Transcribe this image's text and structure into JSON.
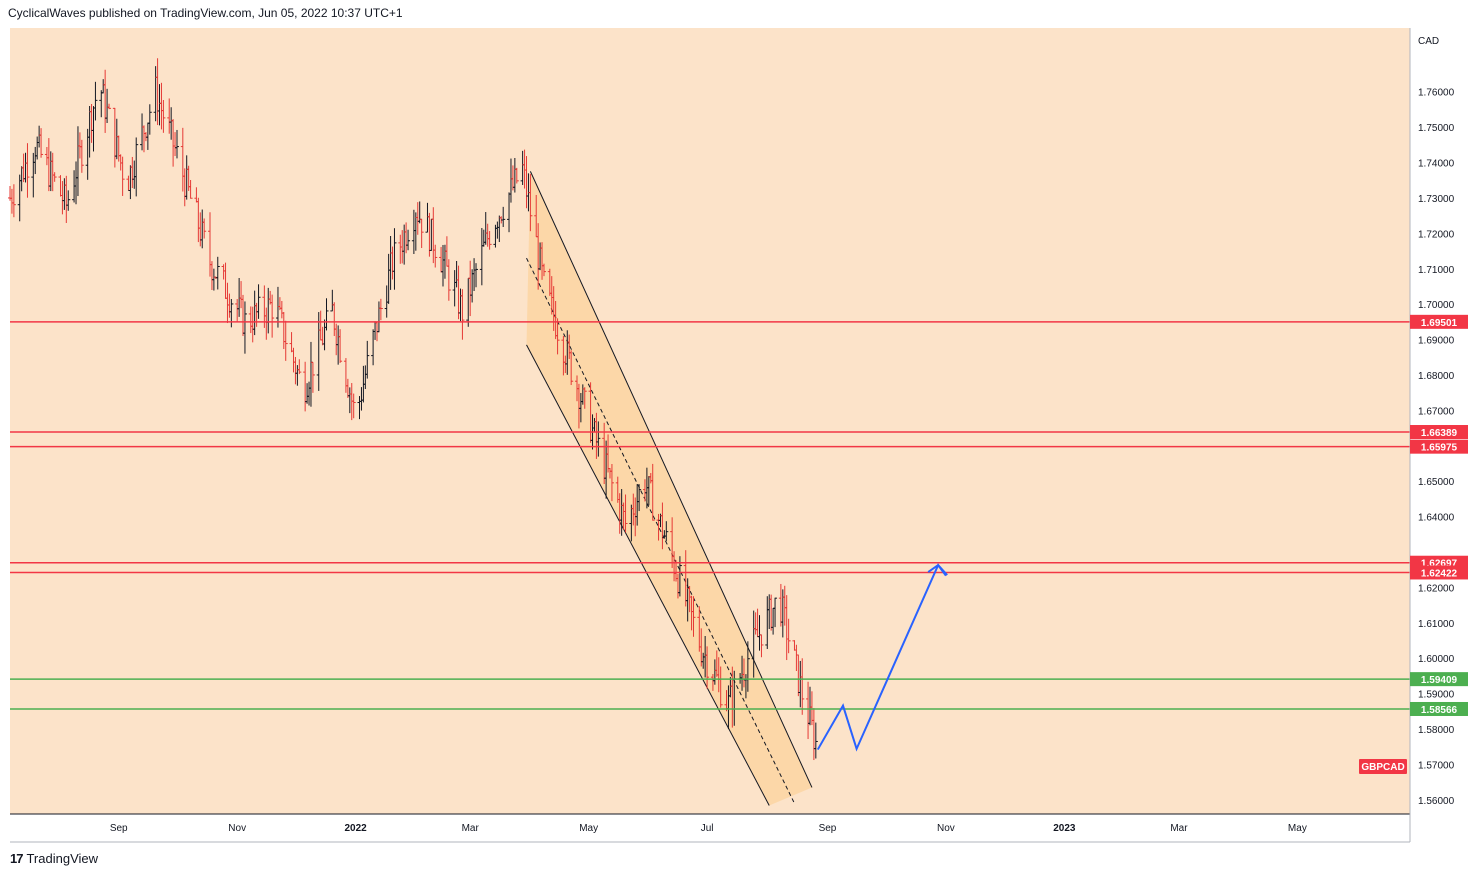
{
  "header": {
    "text": "CyclicalWaves published on TradingView.com, Jun 05, 2022 10:37 UTC+1"
  },
  "footer": {
    "logo": "17",
    "brand": "TradingView"
  },
  "chart_data": {
    "type": "ohlc",
    "symbol_label": "GBPCAD",
    "currency_label": "CAD",
    "colors": {
      "background": "#fce3c9",
      "up": "#131722",
      "down": "#e53935",
      "resistance": "#f23645",
      "support": "#4caf50",
      "channel_fill": "#fcd7a8",
      "projection": "#2962ff"
    },
    "y_ticks": [
      "1.76000",
      "1.75000",
      "1.74000",
      "1.73000",
      "1.72000",
      "1.71000",
      "1.70000",
      "1.69000",
      "1.68000",
      "1.67000",
      "1.65000",
      "1.64000",
      "1.62000",
      "1.61000",
      "1.60000",
      "1.59000",
      "1.58000",
      "1.57000",
      "1.56000"
    ],
    "x_ticks": [
      {
        "label": "Sep",
        "bold": false
      },
      {
        "label": "Nov",
        "bold": false
      },
      {
        "label": "2022",
        "bold": true
      },
      {
        "label": "Mar",
        "bold": false
      },
      {
        "label": "May",
        "bold": false
      },
      {
        "label": "Jul",
        "bold": false
      },
      {
        "label": "Sep",
        "bold": false
      },
      {
        "label": "Nov",
        "bold": false
      },
      {
        "label": "2023",
        "bold": true
      },
      {
        "label": "Mar",
        "bold": false
      },
      {
        "label": "May",
        "bold": false
      }
    ],
    "horizontal_levels": [
      {
        "value": 1.69501,
        "label": "1.69501",
        "type": "resistance"
      },
      {
        "value": 1.66389,
        "label": "1.66389",
        "type": "resistance"
      },
      {
        "value": 1.65975,
        "label": "1.65975",
        "type": "resistance"
      },
      {
        "value": 1.62697,
        "label": "1.62697",
        "type": "resistance"
      },
      {
        "value": 1.62422,
        "label": "1.62422",
        "type": "resistance"
      },
      {
        "value": 1.59409,
        "label": "1.59409",
        "type": "support"
      },
      {
        "value": 1.58566,
        "label": "1.58566",
        "type": "support"
      }
    ],
    "y_range": [
      1.556,
      1.778
    ],
    "x_range": [
      "2021-07-07",
      "2023-06-28"
    ],
    "series_path": [
      [
        "2021-07-07",
        1.73
      ],
      [
        "2021-07-20",
        1.745
      ],
      [
        "2021-08-05",
        1.728
      ],
      [
        "2021-08-22",
        1.762
      ],
      [
        "2021-09-05",
        1.734
      ],
      [
        "2021-09-20",
        1.76
      ],
      [
        "2021-10-01",
        1.742
      ],
      [
        "2021-10-18",
        1.712
      ],
      [
        "2021-11-05",
        1.695
      ],
      [
        "2021-11-20",
        1.7
      ],
      [
        "2021-12-05",
        1.676
      ],
      [
        "2021-12-20",
        1.698
      ],
      [
        "2022-01-01",
        1.668
      ],
      [
        "2022-01-10",
        1.69
      ],
      [
        "2022-01-20",
        1.712
      ],
      [
        "2022-02-01",
        1.727
      ],
      [
        "2022-02-12",
        1.716
      ],
      [
        "2022-02-25",
        1.698
      ],
      [
        "2022-03-12",
        1.722
      ],
      [
        "2022-03-28",
        1.738
      ],
      [
        "2022-04-08",
        1.705
      ],
      [
        "2022-04-22",
        1.682
      ],
      [
        "2022-05-05",
        1.661
      ],
      [
        "2022-05-20",
        1.638
      ],
      [
        "2022-05-30",
        1.65
      ],
      [
        "2022-06-12",
        1.63
      ],
      [
        "2022-06-28",
        1.603
      ],
      [
        "2022-07-12",
        1.587
      ],
      [
        "2022-07-25",
        1.604
      ],
      [
        "2022-08-07",
        1.617
      ],
      [
        "2022-08-18",
        1.592
      ],
      [
        "2022-08-27",
        1.574
      ]
    ],
    "channel": {
      "upper": [
        [
          "2022-04-01",
          1.7375
        ],
        [
          "2022-08-24",
          1.5635
        ]
      ],
      "lower": [
        [
          "2022-03-30",
          1.6885
        ],
        [
          "2022-08-02",
          1.5584
        ]
      ],
      "mid": [
        [
          "2022-03-30",
          1.713
        ],
        [
          "2022-08-15",
          1.559
        ]
      ]
    },
    "projection": [
      [
        "2022-08-27",
        1.5742
      ],
      [
        "2022-09-09",
        1.5866
      ],
      [
        "2022-09-16",
        1.5744
      ],
      [
        "2022-10-28",
        1.6263
      ],
      [
        "2022-11-01",
        1.6233
      ]
    ]
  }
}
